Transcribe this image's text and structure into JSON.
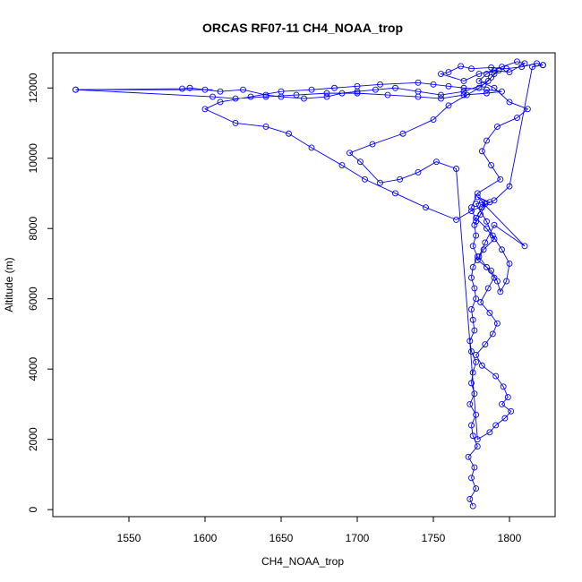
{
  "chart_data": {
    "type": "scatter",
    "title": "ORCAS RF07-11 CH4_NOAA_trop",
    "xlabel": "CH4_NOAA_trop",
    "ylabel": "Altitude (m)",
    "xlim": [
      1500,
      1830
    ],
    "ylim": [
      -200,
      13000
    ],
    "xticks": [
      1550,
      1600,
      1650,
      1700,
      1750,
      1800
    ],
    "yticks": [
      0,
      2000,
      4000,
      6000,
      8000,
      10000,
      12000
    ],
    "grid": false,
    "colors": {
      "series": "#0000ff",
      "axis": "#000000"
    },
    "series": [
      {
        "marker": "open-circle",
        "lines": true,
        "x": [
          1776,
          1774,
          1778,
          1775,
          1777,
          1773,
          1779,
          1776,
          1775,
          1778,
          1774,
          1777,
          1775,
          1776,
          1778,
          1775,
          1774,
          1777,
          1776,
          1775,
          1778,
          1777,
          1775,
          1776,
          1779,
          1776,
          1778,
          1777,
          1781,
          1784,
          1779,
          1787,
          1782,
          1778,
          1785,
          1790,
          1783,
          1779,
          1788,
          1792,
          1794,
          1798,
          1800,
          1795,
          1789,
          1785,
          1778,
          1782,
          1810,
          1790,
          1784,
          1780,
          1785,
          1790,
          1786,
          1781,
          1787,
          1792,
          1789,
          1784,
          1778,
          1782,
          1791,
          1796,
          1799,
          1795,
          1801,
          1797,
          1791,
          1787,
          1779,
          1765,
          1752,
          1740,
          1728,
          1715,
          1702,
          1695,
          1710,
          1730,
          1750,
          1760,
          1772,
          1780,
          1786,
          1790,
          1793,
          1788,
          1783,
          1770,
          1755,
          1740,
          1725,
          1712,
          1700,
          1690,
          1680,
          1665,
          1650,
          1640,
          1625,
          1610,
          1600,
          1590,
          1585,
          1515,
          1605,
          1620,
          1640,
          1660,
          1680,
          1700,
          1720,
          1740,
          1755,
          1770,
          1785,
          1795,
          1785,
          1770,
          1760,
          1750,
          1740,
          1715,
          1700,
          1685,
          1670,
          1650,
          1630,
          1610,
          1600,
          1620,
          1640,
          1655,
          1670,
          1690,
          1705,
          1725,
          1745,
          1765,
          1775,
          1790,
          1800,
          1815,
          1822,
          1818,
          1808,
          1798,
          1788,
          1775,
          1768,
          1760,
          1755,
          1770,
          1780,
          1790,
          1800,
          1810,
          1805,
          1795,
          1785,
          1780,
          1790,
          1800,
          1812,
          1805,
          1792,
          1785,
          1782,
          1788,
          1794,
          1779,
          1775,
          1778
        ],
        "y": [
          100,
          300,
          600,
          900,
          1200,
          1500,
          1800,
          2100,
          2400,
          2700,
          3000,
          3300,
          3600,
          3900,
          4200,
          4500,
          4800,
          5100,
          5400,
          5700,
          6000,
          6300,
          6600,
          6900,
          7200,
          7500,
          7800,
          8100,
          8400,
          8700,
          8900,
          8750,
          8600,
          8300,
          8000,
          7700,
          7400,
          7100,
          6800,
          6500,
          6200,
          6500,
          7000,
          7400,
          7800,
          8200,
          8700,
          8750,
          7500,
          8100,
          7600,
          7200,
          6900,
          6600,
          6300,
          5900,
          5600,
          5300,
          5000,
          4700,
          4400,
          4100,
          3800,
          3500,
          3200,
          3000,
          2800,
          2600,
          2400,
          2200,
          2000,
          9700,
          9900,
          9600,
          9400,
          9300,
          9900,
          10150,
          10400,
          10700,
          11100,
          11500,
          11800,
          12000,
          12200,
          12400,
          12500,
          12300,
          12100,
          11900,
          11800,
          11900,
          12000,
          11950,
          11900,
          11850,
          11750,
          11700,
          11750,
          11800,
          11950,
          11900,
          11950,
          12000,
          11980,
          11950,
          11750,
          11700,
          11750,
          11800,
          11850,
          11850,
          11800,
          11750,
          11700,
          11800,
          11850,
          11900,
          11950,
          12000,
          12050,
          12100,
          12150,
          12100,
          12050,
          12000,
          11950,
          11900,
          11750,
          11600,
          11400,
          11000,
          10900,
          10700,
          10300,
          9800,
          9400,
          9000,
          8600,
          8250,
          8500,
          8800,
          9200,
          12600,
          12650,
          12700,
          12600,
          12550,
          12580,
          12550,
          12620,
          12450,
          12400,
          12200,
          12400,
          12500,
          12450,
          12700,
          12750,
          12600,
          12400,
          12200,
          12000,
          11600,
          11400,
          11150,
          10900,
          10500,
          10200,
          9800,
          9400,
          9000,
          8600,
          8200
        ],
        "anchor_points": [
          {
            "x": 1515,
            "y": 11950
          },
          {
            "x": 1822,
            "y": 12650
          }
        ]
      }
    ]
  }
}
